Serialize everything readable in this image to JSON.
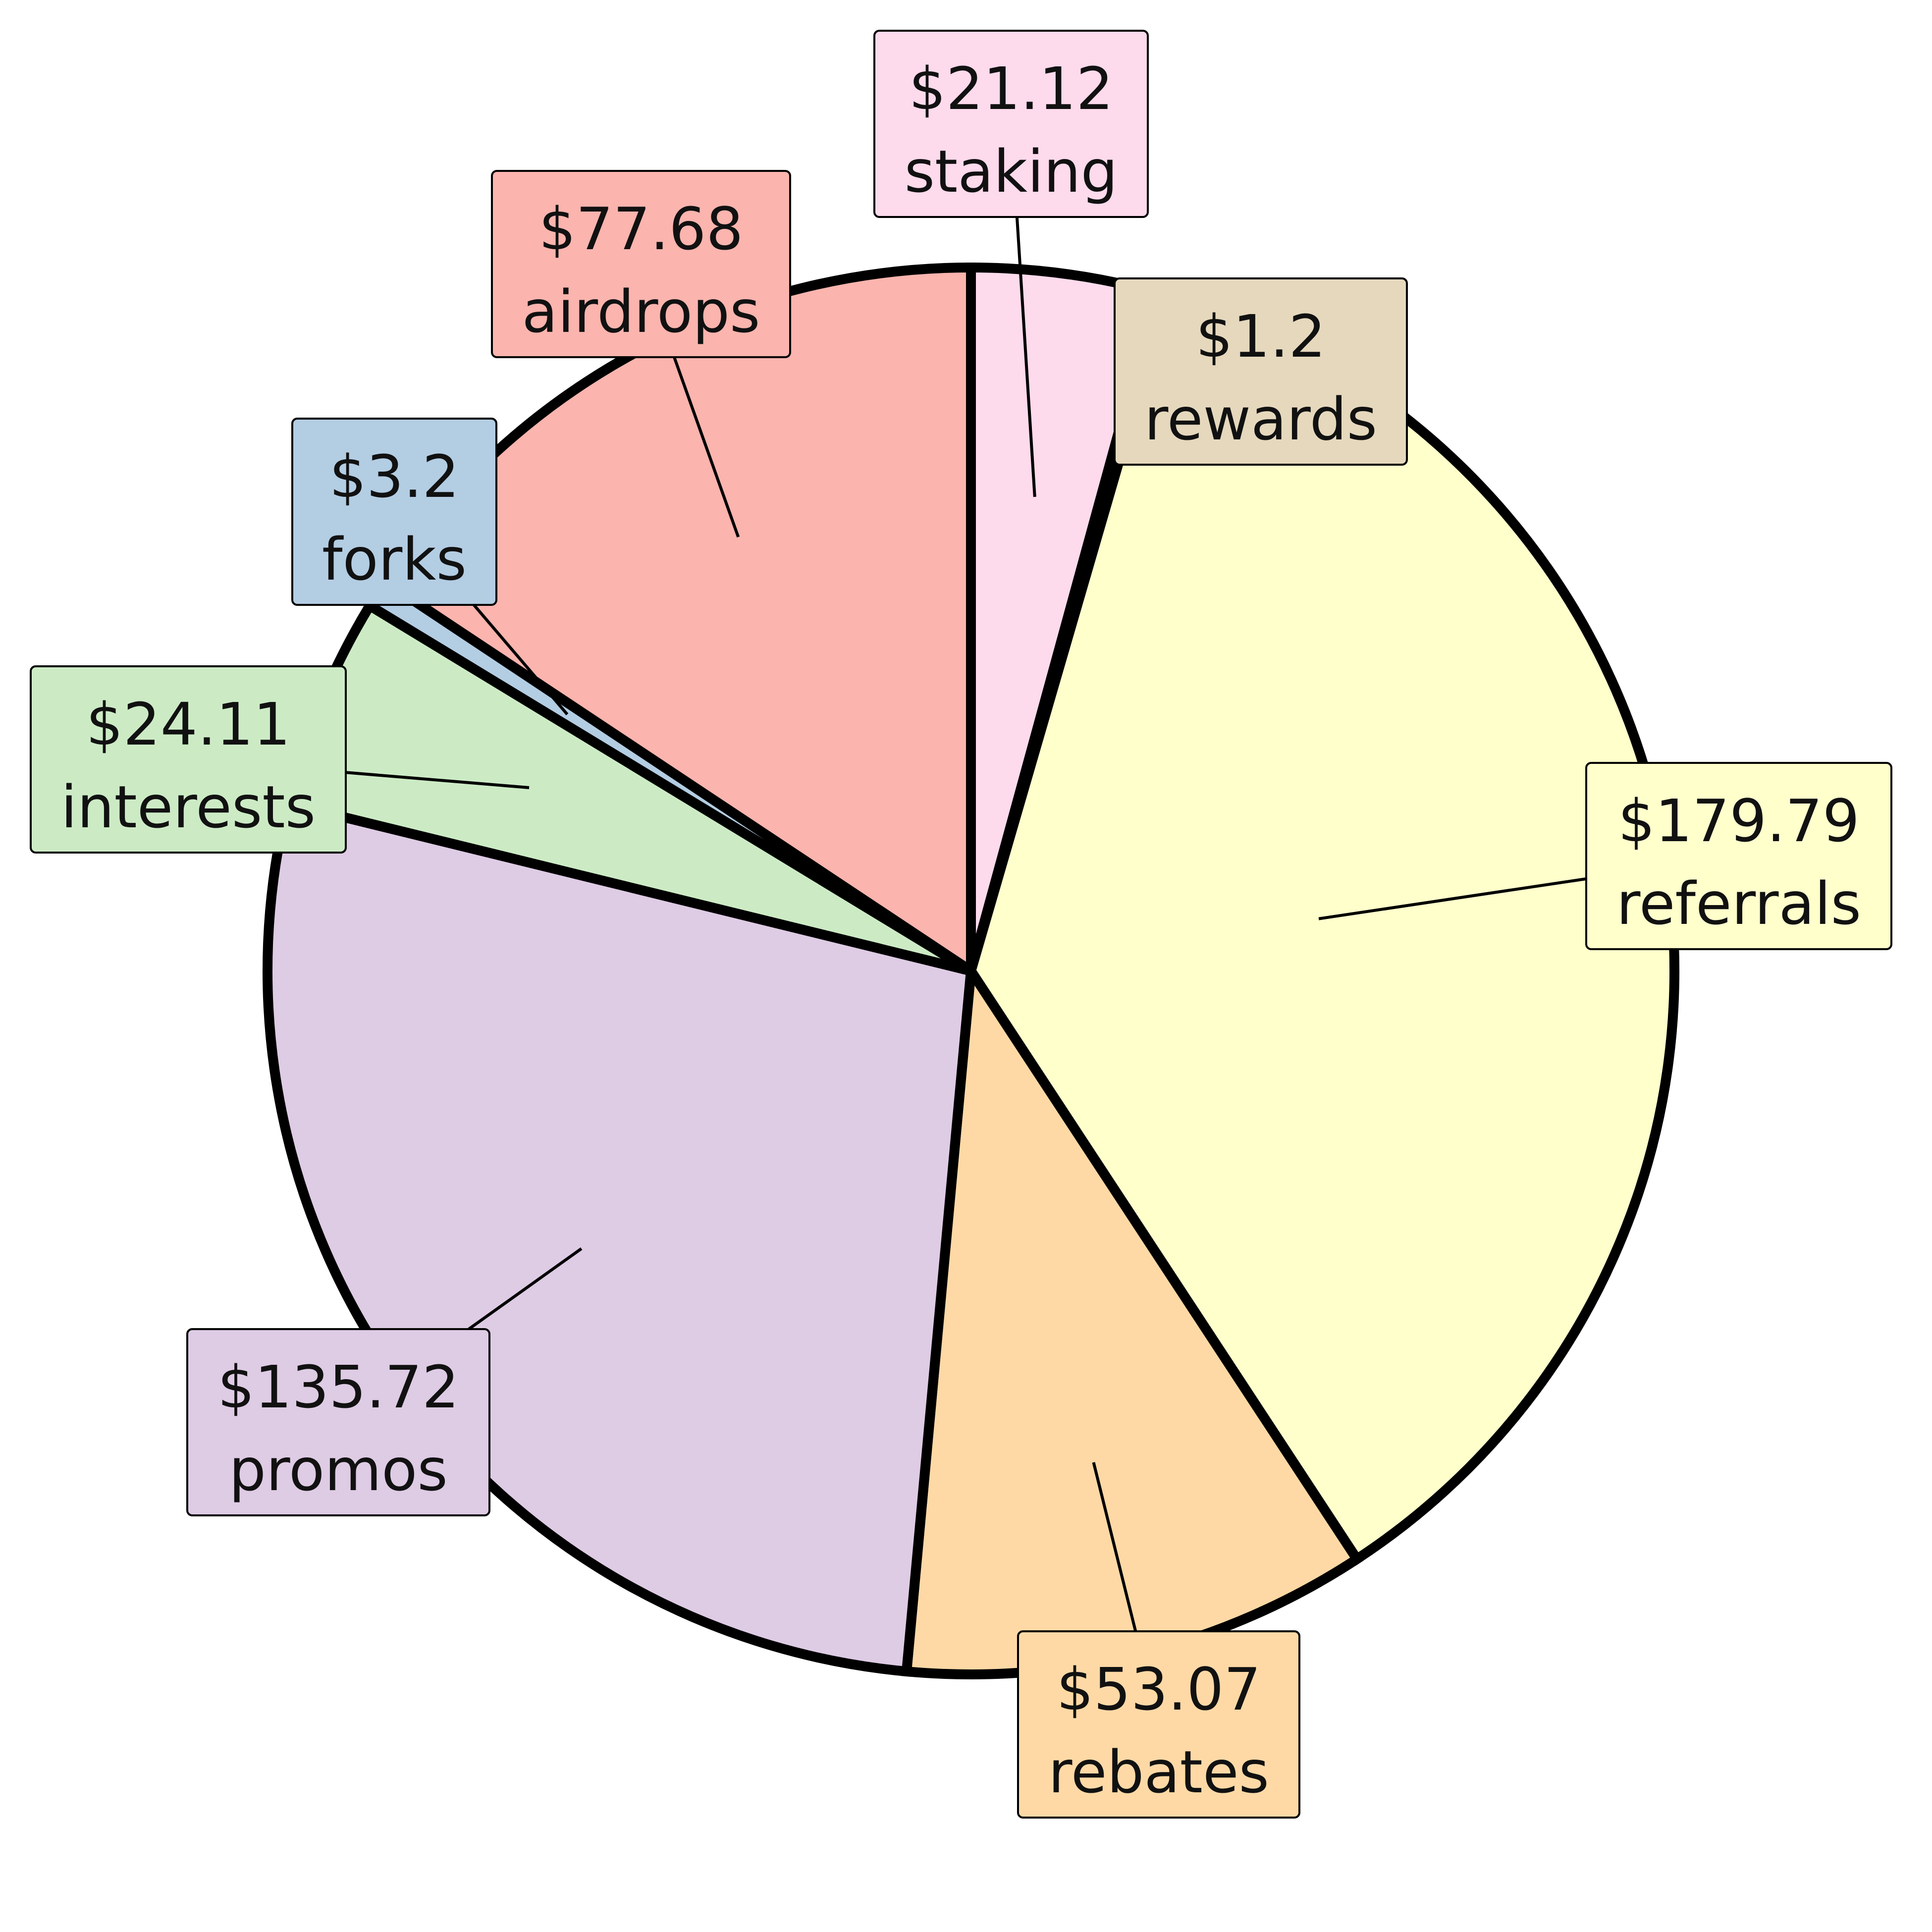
{
  "chart_data": {
    "type": "pie",
    "title": "",
    "start_angle_deg": 90,
    "direction": "clockwise",
    "edge_color": "#000000",
    "slices": [
      {
        "label": "staking",
        "value": 21.12,
        "value_label": "$21.12",
        "color": "#fddaec"
      },
      {
        "label": "rewards",
        "value": 1.2,
        "value_label": "$1.2",
        "color": "#e5d8bd"
      },
      {
        "label": "referrals",
        "value": 179.79,
        "value_label": "$179.79",
        "color": "#ffffcc"
      },
      {
        "label": "rebates",
        "value": 53.07,
        "value_label": "$53.07",
        "color": "#fed9a6"
      },
      {
        "label": "promos",
        "value": 135.72,
        "value_label": "$135.72",
        "color": "#decbe4"
      },
      {
        "label": "interests",
        "value": 24.11,
        "value_label": "$24.11",
        "color": "#ccebc5"
      },
      {
        "label": "forks",
        "value": 3.2,
        "value_label": "$3.2",
        "color": "#b3cde3"
      },
      {
        "label": "airdrops",
        "value": 77.68,
        "value_label": "$77.68",
        "color": "#fbb4ae"
      }
    ]
  }
}
